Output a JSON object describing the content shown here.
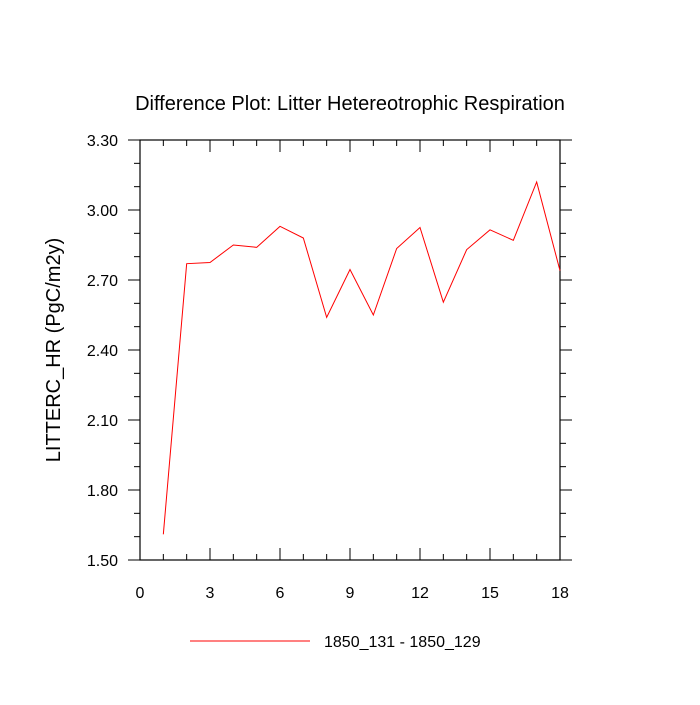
{
  "chart_data": {
    "type": "line",
    "title": "Difference Plot: Litter Hetereotrophic Respiration",
    "xlabel": "",
    "ylabel": "LITTERC_HR  (PgC/m2y)",
    "xlim": [
      0,
      18
    ],
    "ylim": [
      1.5,
      3.3
    ],
    "xticks": [
      0,
      3,
      6,
      9,
      12,
      15,
      18
    ],
    "yticks": [
      1.5,
      1.8,
      2.1,
      2.4,
      2.7,
      3.0,
      3.3
    ],
    "ytick_labels": [
      "1.50",
      "1.80",
      "2.10",
      "2.40",
      "2.70",
      "3.00",
      "3.30"
    ],
    "legend_position": "bottom-center",
    "series": [
      {
        "name": "1850_131 - 1850_129",
        "color": "#ff0000",
        "x": [
          1,
          2,
          3,
          4,
          5,
          6,
          7,
          8,
          9,
          10,
          11,
          12,
          13,
          14,
          15,
          16,
          17,
          18
        ],
        "y": [
          1.61,
          2.77,
          2.775,
          2.85,
          2.84,
          2.93,
          2.88,
          2.54,
          2.745,
          2.55,
          2.835,
          2.925,
          2.605,
          2.83,
          2.915,
          2.87,
          3.12,
          2.74
        ]
      }
    ]
  }
}
